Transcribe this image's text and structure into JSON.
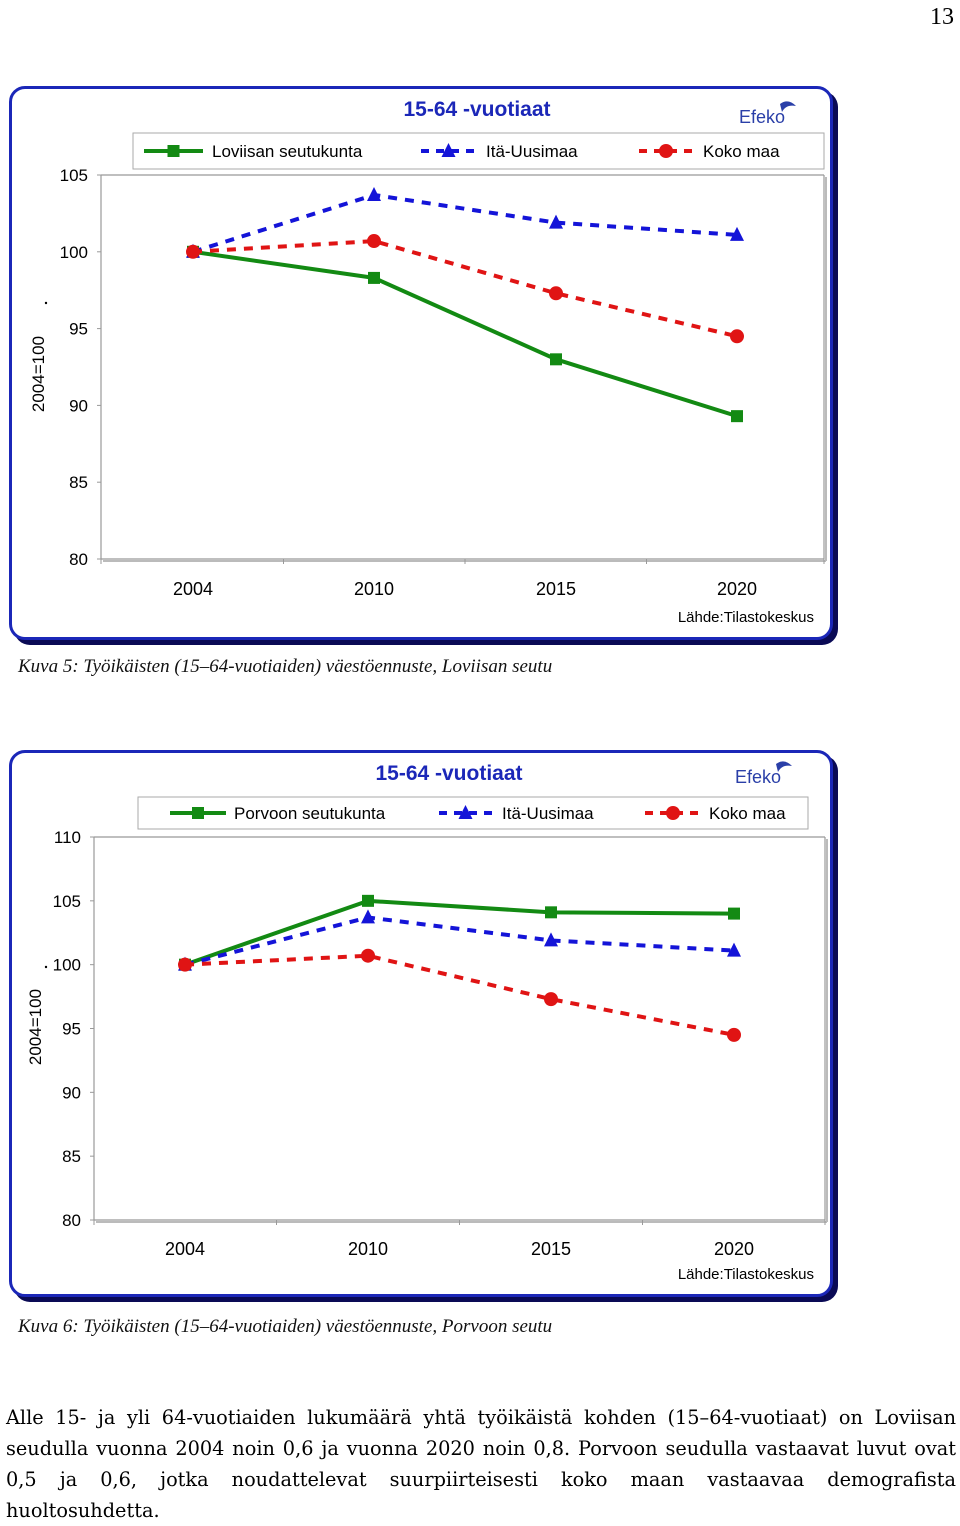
{
  "page_number": "13",
  "colors": {
    "frame": "#1b27b8",
    "green": "#138a13",
    "blue": "#1414d8",
    "red": "#e01414",
    "logo": "#2a3fa8"
  },
  "charts": [
    {
      "logo_text": "Efeko",
      "source": "Lähde:Tilastokeskus",
      "caption": "Kuva 5: Työikäisten (15–64-vuotiaiden) väestöennuste, Loviisan seutu"
    },
    {
      "logo_text": "Efeko",
      "source": "Lähde:Tilastokeskus",
      "caption": "Kuva 6: Työikäisten (15–64-vuotiaiden) väestöennuste, Porvoon seutu"
    }
  ],
  "chart_data": [
    {
      "type": "line",
      "title": "15-64 -vuotiaat",
      "ylabel": "2004=100",
      "xlabel": "",
      "categories": [
        "2004",
        "2010",
        "2015",
        "2020"
      ],
      "yticks": [
        "80",
        "85",
        "90",
        "95",
        "100",
        "105"
      ],
      "ylim": [
        80,
        105
      ],
      "grid": false,
      "legend_position": "top",
      "series": [
        {
          "name": "Loviisan seutukunta",
          "color": "#138a13",
          "marker": "square",
          "dashed": false,
          "values": [
            100,
            98.3,
            93.0,
            89.3
          ]
        },
        {
          "name": "Itä-Uusimaa",
          "color": "#1414d8",
          "marker": "triangle",
          "dashed": true,
          "values": [
            100,
            103.7,
            101.9,
            101.1
          ]
        },
        {
          "name": "Koko maa",
          "color": "#e01414",
          "marker": "circle",
          "dashed": true,
          "values": [
            100,
            100.7,
            97.3,
            94.5
          ]
        }
      ]
    },
    {
      "type": "line",
      "title": "15-64 -vuotiaat",
      "ylabel": "2004=100",
      "xlabel": "",
      "categories": [
        "2004",
        "2010",
        "2015",
        "2020"
      ],
      "yticks": [
        "80",
        "85",
        "90",
        "95",
        "100",
        "105",
        "110"
      ],
      "ylim": [
        80,
        110
      ],
      "grid": false,
      "legend_position": "top",
      "series": [
        {
          "name": "Porvoon seutukunta",
          "color": "#138a13",
          "marker": "square",
          "dashed": false,
          "values": [
            100,
            105.0,
            104.1,
            104.0
          ]
        },
        {
          "name": "Itä-Uusimaa",
          "color": "#1414d8",
          "marker": "triangle",
          "dashed": true,
          "values": [
            100,
            103.7,
            101.9,
            101.1
          ]
        },
        {
          "name": "Koko maa",
          "color": "#e01414",
          "marker": "circle",
          "dashed": true,
          "values": [
            100,
            100.7,
            97.3,
            94.5
          ]
        }
      ]
    }
  ],
  "body_text": "Alle 15- ja yli 64-vuotiaiden lukumäärä yhtä työikäistä kohden (15–64-vuotiaat) on Loviisan seudulla vuonna 2004 noin 0,6 ja vuonna 2020 noin 0,8. Porvoon seudulla vastaavat luvut ovat 0,5 ja 0,6, jotka noudattelevat suurpiirteisesti koko maan vastaavaa demografista huoltosuhdetta."
}
